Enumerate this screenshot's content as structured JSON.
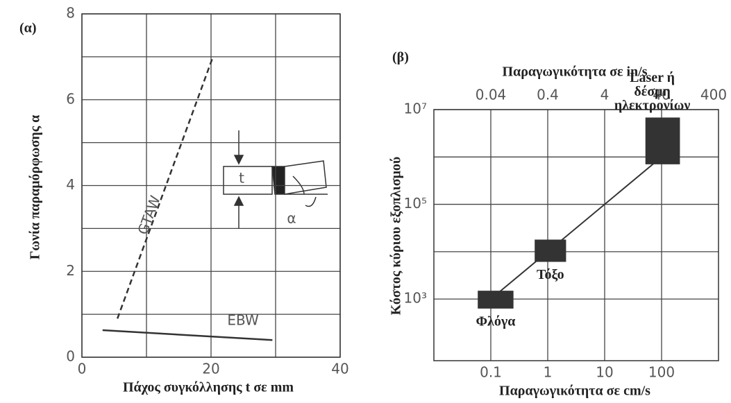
{
  "chart_data": [
    {
      "type": "line",
      "panel": "(α)",
      "y_label": "Γωνία παραμόρφωσης α",
      "x_label": "Πάχος συγκόλλησης t σε mm",
      "xlim": [
        0,
        40
      ],
      "ylim": [
        0,
        8
      ],
      "xticks": [
        0,
        20,
        40
      ],
      "yticks": [
        0,
        2,
        4,
        6,
        8
      ],
      "x_minor_ticks": [
        10,
        30
      ],
      "y_minor_ticks": [
        1,
        3,
        5,
        7
      ],
      "grid": true,
      "inset_labels": [
        "t",
        "α"
      ],
      "series": [
        {
          "name": "GTAW",
          "color": "#333333",
          "style": "dashed",
          "x": [
            5.5,
            20.3
          ],
          "values": [
            0.9,
            7.0
          ]
        },
        {
          "name": "EBW",
          "color": "#333333",
          "style": "solid",
          "x": [
            3.2,
            29.5
          ],
          "values": [
            0.63,
            0.4
          ]
        }
      ]
    },
    {
      "type": "box_line",
      "panel": "(β)",
      "y_label": "Κόστος κύριου εξοπλισμού",
      "x_label": "Παραγωγικότητα σε cm/s",
      "x2_label": "Παραγωγικότητα σε in/s",
      "log_x": true,
      "log_y": true,
      "xlim": [
        0.01,
        1000
      ],
      "x2lim": [
        0.004,
        400
      ],
      "ylim": [
        50,
        10000000
      ],
      "xticks": [
        0.1,
        1,
        10,
        100
      ],
      "x2ticks": [
        0.04,
        0.4,
        4,
        40,
        400
      ],
      "yticks": [
        {
          "value": 1000,
          "label": "10³"
        },
        {
          "value": 100000,
          "label": "10⁵"
        },
        {
          "value": 10000000,
          "label": "10⁷"
        }
      ],
      "y_minor_ticks": [
        10000,
        1000000
      ],
      "grid": true,
      "color": "#333333",
      "boxes": [
        {
          "label": [
            "Φλόγα"
          ],
          "x": [
            0.059,
            0.25
          ],
          "y": [
            630,
            1500
          ]
        },
        {
          "label": [
            "Τόξο"
          ],
          "x": [
            0.59,
            2.1
          ],
          "y": [
            6100,
            18000
          ]
        },
        {
          "label": [
            "Laser ή",
            "δέσμη",
            "ηλεκτρονίων"
          ],
          "x": [
            52,
            210
          ],
          "y": [
            700000,
            6800000
          ]
        }
      ],
      "line": {
        "x": [
          0.1,
          1,
          100
        ],
        "values": [
          1000,
          10000,
          1000000
        ]
      }
    }
  ]
}
